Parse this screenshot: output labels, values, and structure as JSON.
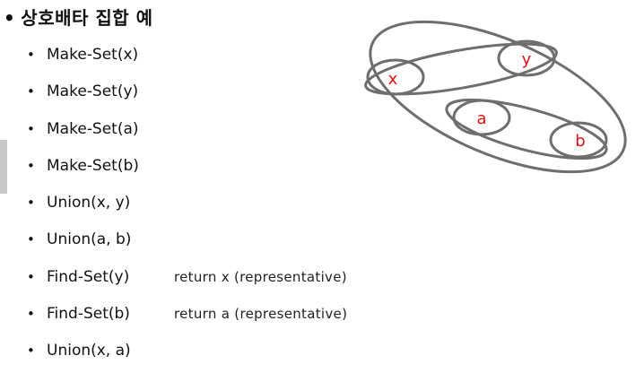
{
  "title": "상호배타 집합 예",
  "bullet": "•",
  "operations": [
    {
      "op": "Make-Set(x)",
      "note": ""
    },
    {
      "op": "Make-Set(y)",
      "note": ""
    },
    {
      "op": "Make-Set(a)",
      "note": ""
    },
    {
      "op": "Make-Set(b)",
      "note": ""
    },
    {
      "op": "Union(x, y)",
      "note": ""
    },
    {
      "op": "Union(a, b)",
      "note": ""
    },
    {
      "op": "Find-Set(y)",
      "note": "return  x  (representative)"
    },
    {
      "op": "Find-Set(b)",
      "note": "return  a  (representative)"
    },
    {
      "op": "Union(x, a)",
      "note": ""
    }
  ],
  "diagram": {
    "nodes": [
      "x",
      "y",
      "a",
      "b"
    ],
    "sets": [
      [
        "x",
        "y"
      ],
      [
        "a",
        "b"
      ],
      [
        "x",
        "y",
        "a",
        "b"
      ]
    ],
    "colors": {
      "outline": "#6e6e6e",
      "label": "#dd1111"
    }
  }
}
